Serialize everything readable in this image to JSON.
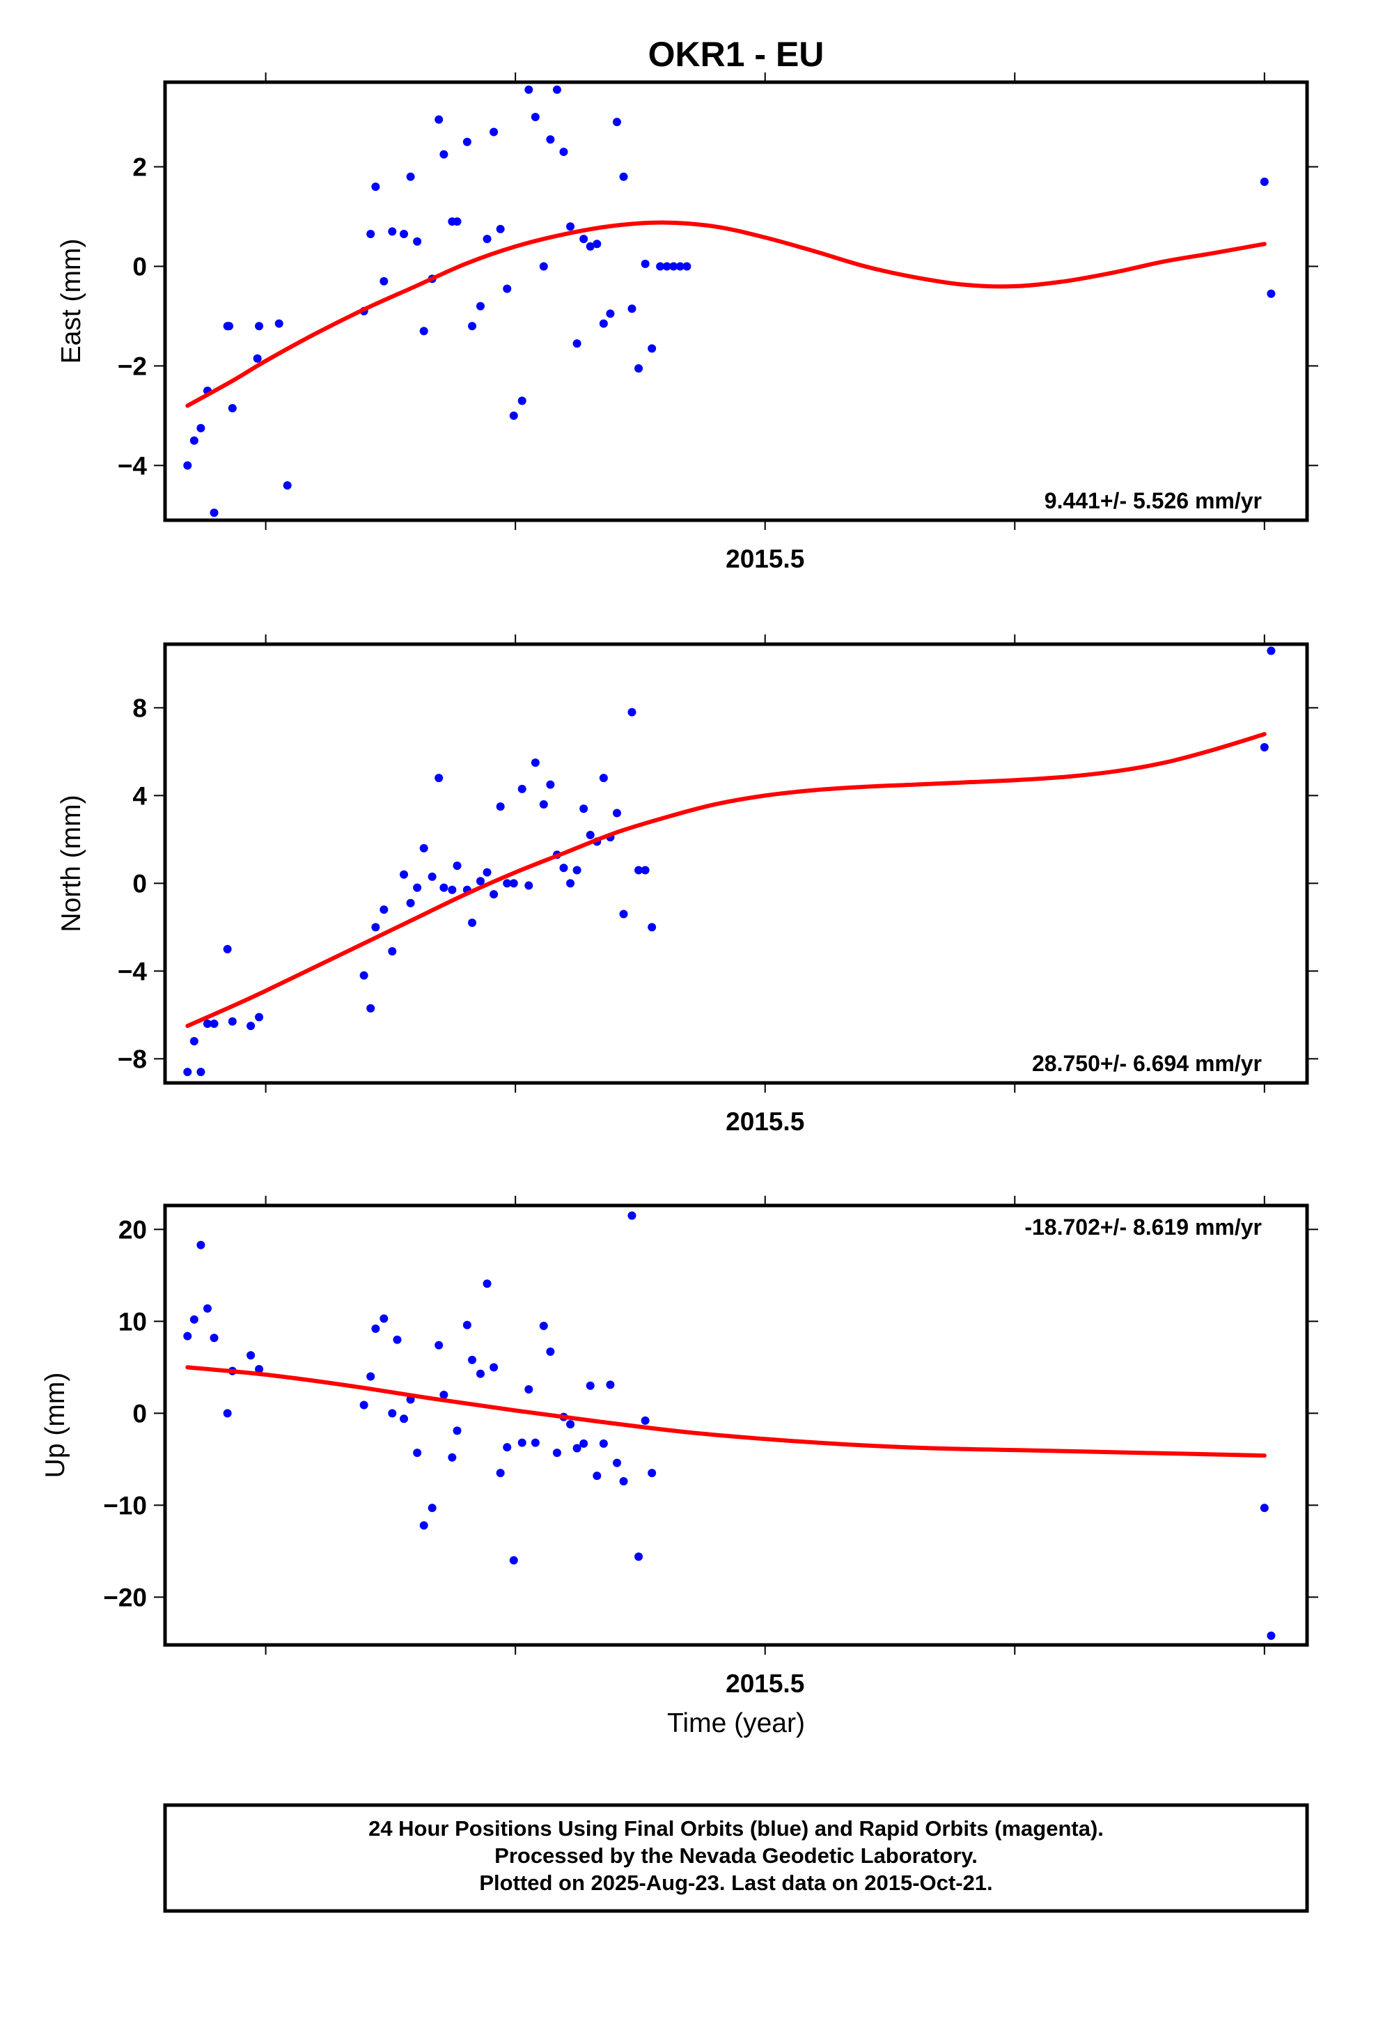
{
  "title": "OKR1 - EU",
  "xlabel": "Time (year)",
  "footer": {
    "lines": [
      "24 Hour Positions Using Final Orbits (blue) and Rapid Orbits (magenta).",
      "Processed by the Nevada Geodetic Laboratory.",
      "Plotted on 2025-Aug-23. Last data on 2015-Oct-21."
    ]
  },
  "colors": {
    "data": "#0000ff",
    "fit": "#ff0000",
    "frame": "#000000"
  },
  "chart_data": [
    {
      "type": "scatter",
      "ylabel": "East (mm)",
      "rate_label": "9.441+/- 5.526 mm/yr",
      "rate_position": "bottom-right",
      "xlim": [
        2015.1395,
        2015.8256
      ],
      "ylim": [
        -5.1,
        3.7
      ],
      "xticks": [
        2015.2,
        2015.35,
        2015.5,
        2015.65,
        2015.8
      ],
      "xtick_labels": [
        {
          "value": 2015.5,
          "label": "2015.5"
        }
      ],
      "yticks": [
        -4,
        -2,
        0,
        2
      ],
      "ytick_labels": [
        "−4",
        "−2",
        "0",
        "2"
      ],
      "series": [
        {
          "kind": "points",
          "x": [
            2015.153,
            2015.157,
            2015.161,
            2015.165,
            2015.169,
            2015.177,
            2015.178,
            2015.18,
            2015.195,
            2015.196,
            2015.208,
            2015.213,
            2015.259,
            2015.263,
            2015.266,
            2015.271,
            2015.276,
            2015.283,
            2015.287,
            2015.291,
            2015.295,
            2015.3,
            2015.304,
            2015.307,
            2015.312,
            2015.315,
            2015.321,
            2015.324,
            2015.329,
            2015.333,
            2015.337,
            2015.341,
            2015.345,
            2015.349,
            2015.354,
            2015.358,
            2015.362,
            2015.367,
            2015.371,
            2015.375,
            2015.379,
            2015.383,
            2015.387,
            2015.391,
            2015.395,
            2015.399,
            2015.403,
            2015.407,
            2015.411,
            2015.415,
            2015.42,
            2015.424,
            2015.428,
            2015.432,
            2015.437,
            2015.441,
            2015.445,
            2015.449,
            2015.453,
            2015.8,
            2015.804
          ],
          "y": [
            -4.0,
            -3.5,
            -3.25,
            -2.5,
            -4.95,
            -1.2,
            -1.2,
            -2.85,
            -1.85,
            -1.2,
            -1.15,
            -4.4,
            -0.9,
            0.65,
            1.6,
            -0.3,
            0.7,
            0.65,
            1.8,
            0.5,
            -1.3,
            -0.25,
            2.95,
            2.25,
            0.9,
            0.9,
            2.5,
            -1.2,
            -0.8,
            0.55,
            2.7,
            0.75,
            -0.45,
            -3.0,
            -2.7,
            3.55,
            3.0,
            0.0,
            2.55,
            3.55,
            2.3,
            0.8,
            -1.55,
            0.55,
            0.4,
            0.45,
            -1.15,
            -0.95,
            2.9,
            1.8,
            -0.85,
            -2.05,
            0.05,
            -1.65,
            0.0,
            0.0,
            0.0,
            0.0,
            0.0,
            1.7,
            -0.55
          ]
        },
        {
          "kind": "fit",
          "x": [
            2015.153,
            2015.18,
            2015.2,
            2015.23,
            2015.26,
            2015.29,
            2015.32,
            2015.35,
            2015.38,
            2015.41,
            2015.44,
            2015.47,
            2015.5,
            2015.53,
            2015.56,
            2015.59,
            2015.62,
            2015.65,
            2015.68,
            2015.71,
            2015.74,
            2015.77,
            2015.8
          ],
          "y": [
            -2.8,
            -2.3,
            -1.9,
            -1.35,
            -0.85,
            -0.4,
            0.05,
            0.4,
            0.65,
            0.82,
            0.88,
            0.8,
            0.58,
            0.3,
            0.0,
            -0.22,
            -0.37,
            -0.4,
            -0.3,
            -0.12,
            0.1,
            0.27,
            0.45
          ]
        }
      ]
    },
    {
      "type": "scatter",
      "ylabel": "North (mm)",
      "rate_label": "28.750+/- 6.694 mm/yr",
      "rate_position": "bottom-right",
      "xlim": [
        2015.1395,
        2015.8256
      ],
      "ylim": [
        -9.1,
        10.9
      ],
      "xticks": [
        2015.2,
        2015.35,
        2015.5,
        2015.65,
        2015.8
      ],
      "xtick_labels": [
        {
          "value": 2015.5,
          "label": "2015.5"
        }
      ],
      "yticks": [
        -8,
        -4,
        0,
        4,
        8
      ],
      "ytick_labels": [
        "−8",
        "−4",
        "0",
        "4",
        "8"
      ],
      "series": [
        {
          "kind": "points",
          "x": [
            2015.153,
            2015.157,
            2015.161,
            2015.165,
            2015.169,
            2015.177,
            2015.18,
            2015.191,
            2015.196,
            2015.259,
            2015.263,
            2015.266,
            2015.271,
            2015.276,
            2015.283,
            2015.287,
            2015.291,
            2015.295,
            2015.3,
            2015.304,
            2015.307,
            2015.312,
            2015.315,
            2015.321,
            2015.324,
            2015.329,
            2015.333,
            2015.337,
            2015.341,
            2015.345,
            2015.349,
            2015.354,
            2015.358,
            2015.362,
            2015.367,
            2015.371,
            2015.375,
            2015.379,
            2015.383,
            2015.387,
            2015.391,
            2015.395,
            2015.399,
            2015.403,
            2015.407,
            2015.411,
            2015.415,
            2015.42,
            2015.424,
            2015.428,
            2015.432,
            2015.8,
            2015.804
          ],
          "y": [
            -8.6,
            -7.2,
            -8.6,
            -6.4,
            -6.4,
            -3.0,
            -6.3,
            -6.5,
            -6.1,
            -4.2,
            -5.7,
            -2.0,
            -1.2,
            -3.1,
            0.4,
            -0.9,
            -0.2,
            1.6,
            0.3,
            4.8,
            -0.2,
            -0.3,
            0.8,
            -0.3,
            -1.8,
            0.1,
            0.5,
            -0.5,
            3.5,
            0.0,
            0.0,
            4.3,
            -0.1,
            5.5,
            3.6,
            4.5,
            1.3,
            0.7,
            0.0,
            0.6,
            3.4,
            2.2,
            1.9,
            4.8,
            2.1,
            3.2,
            -1.4,
            7.8,
            0.6,
            0.6,
            -2.0,
            6.2,
            10.6
          ]
        },
        {
          "kind": "fit",
          "x": [
            2015.153,
            2015.18,
            2015.2,
            2015.23,
            2015.26,
            2015.29,
            2015.32,
            2015.35,
            2015.38,
            2015.41,
            2015.44,
            2015.47,
            2015.5,
            2015.53,
            2015.56,
            2015.59,
            2015.62,
            2015.65,
            2015.68,
            2015.71,
            2015.74,
            2015.77,
            2015.8
          ],
          "y": [
            -6.5,
            -5.6,
            -4.9,
            -3.8,
            -2.7,
            -1.6,
            -0.5,
            0.5,
            1.4,
            2.3,
            3.0,
            3.6,
            4.0,
            4.25,
            4.4,
            4.5,
            4.6,
            4.7,
            4.85,
            5.1,
            5.5,
            6.1,
            6.8
          ]
        }
      ]
    },
    {
      "type": "scatter",
      "ylabel": "Up (mm)",
      "rate_label": "-18.702+/- 8.619 mm/yr",
      "rate_position": "top-right",
      "xlim": [
        2015.1395,
        2015.8256
      ],
      "ylim": [
        -25.2,
        22.6
      ],
      "xticks": [
        2015.2,
        2015.35,
        2015.5,
        2015.65,
        2015.8
      ],
      "xtick_labels": [
        {
          "value": 2015.5,
          "label": "2015.5"
        }
      ],
      "yticks": [
        -20,
        -10,
        0,
        10,
        20
      ],
      "ytick_labels": [
        "−20",
        "−10",
        "0",
        "10",
        "20"
      ],
      "series": [
        {
          "kind": "points",
          "x": [
            2015.153,
            2015.157,
            2015.161,
            2015.165,
            2015.169,
            2015.177,
            2015.18,
            2015.191,
            2015.196,
            2015.259,
            2015.263,
            2015.266,
            2015.271,
            2015.276,
            2015.279,
            2015.283,
            2015.287,
            2015.291,
            2015.295,
            2015.3,
            2015.304,
            2015.307,
            2015.312,
            2015.315,
            2015.321,
            2015.324,
            2015.329,
            2015.333,
            2015.337,
            2015.341,
            2015.345,
            2015.349,
            2015.354,
            2015.358,
            2015.362,
            2015.367,
            2015.371,
            2015.375,
            2015.379,
            2015.383,
            2015.387,
            2015.391,
            2015.395,
            2015.399,
            2015.403,
            2015.407,
            2015.411,
            2015.415,
            2015.42,
            2015.424,
            2015.428,
            2015.432,
            2015.8,
            2015.804
          ],
          "y": [
            8.4,
            10.2,
            18.3,
            11.4,
            8.2,
            0.0,
            4.6,
            6.3,
            4.8,
            0.9,
            4.0,
            9.2,
            10.3,
            0.0,
            8.0,
            -0.6,
            1.5,
            -4.3,
            -12.2,
            -10.3,
            7.4,
            2.0,
            -4.8,
            -1.9,
            9.6,
            5.8,
            4.3,
            14.1,
            5.0,
            -6.5,
            -3.7,
            -16.0,
            -3.2,
            2.6,
            -3.2,
            9.5,
            6.7,
            -4.3,
            -0.4,
            -1.2,
            -3.8,
            -3.3,
            3.0,
            -6.8,
            -3.3,
            3.1,
            -5.4,
            -7.4,
            21.5,
            -15.6,
            -0.8,
            -6.5,
            -10.3,
            -24.2
          ]
        },
        {
          "kind": "fit",
          "x": [
            2015.153,
            2015.2,
            2015.25,
            2015.3,
            2015.35,
            2015.4,
            2015.45,
            2015.5,
            2015.55,
            2015.6,
            2015.65,
            2015.7,
            2015.75,
            2015.8
          ],
          "y": [
            5.0,
            4.2,
            3.0,
            1.6,
            0.3,
            -0.9,
            -2.0,
            -2.8,
            -3.4,
            -3.8,
            -4.0,
            -4.2,
            -4.4,
            -4.6
          ]
        }
      ]
    }
  ]
}
